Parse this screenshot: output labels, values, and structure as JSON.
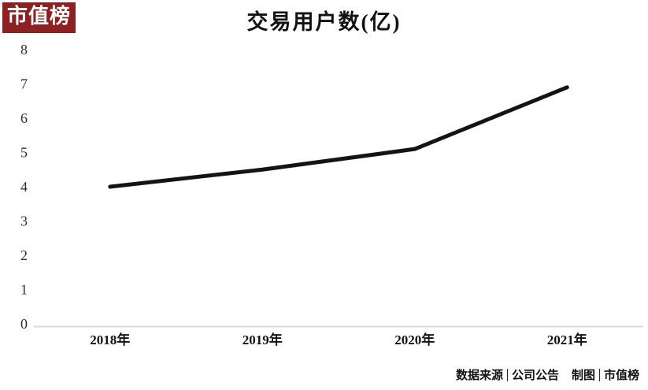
{
  "logo": {
    "text": "市值榜"
  },
  "title": "交易用户数(亿)",
  "credits": {
    "source_label": "数据来源",
    "source_value": "公司公告",
    "maker_label": "制图",
    "maker_value": "市值榜"
  },
  "colors": {
    "logo_bg": "#8b2122",
    "logo_text": "#ffffff",
    "line": "#141414",
    "axis_line": "#d9d9d9",
    "tick_text": "#2e2e2e",
    "label_text": "#121212"
  },
  "chart_data": {
    "type": "line",
    "title": "交易用户数(亿)",
    "categories": [
      "2018年",
      "2019年",
      "2020年",
      "2021年"
    ],
    "values": [
      4.0,
      4.5,
      5.1,
      6.9
    ],
    "yticks": [
      0,
      1,
      2,
      3,
      4,
      5,
      6,
      7,
      8
    ],
    "ylim": [
      0,
      8
    ],
    "xlabel": "",
    "ylabel": "",
    "grid": false,
    "legend": "none",
    "line_color": "#141414",
    "line_width": 5
  }
}
